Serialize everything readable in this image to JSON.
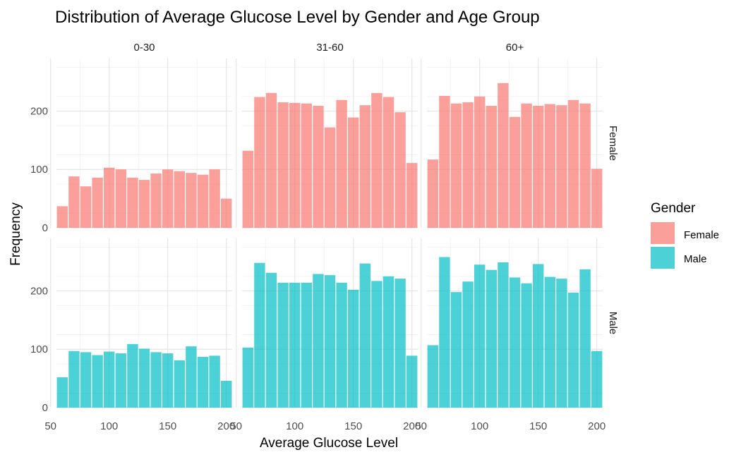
{
  "chart_data": {
    "type": "bar",
    "title": "Distribution of Average Glucose Level by Gender and Age Group",
    "xlabel": "Average Glucose Level",
    "ylabel": "Frequency",
    "xlim": [
      55,
      205
    ],
    "ylim": [
      0,
      290
    ],
    "x_ticks": [
      50,
      100,
      150,
      200
    ],
    "y_ticks": [
      0,
      100,
      200
    ],
    "columns": [
      "0-30",
      "31-60",
      "60+"
    ],
    "rows": [
      "Female",
      "Male"
    ],
    "bin_centers": [
      60,
      70,
      80,
      90,
      100,
      110,
      120,
      130,
      140,
      150,
      160,
      170,
      180,
      190,
      200
    ],
    "legend": {
      "title": "Gender",
      "placement": "right",
      "items": [
        {
          "label": "Female",
          "color": "#f8766d"
        },
        {
          "label": "Male",
          "color": "#00bfc4"
        }
      ]
    },
    "series": [
      {
        "name": "Female",
        "color": "#f8766d",
        "panels": {
          "0-30": [
            37,
            88,
            71,
            86,
            103,
            100,
            86,
            82,
            93,
            100,
            97,
            94,
            91,
            100,
            50
          ],
          "31-60": [
            132,
            224,
            231,
            215,
            214,
            213,
            209,
            172,
            219,
            189,
            210,
            231,
            224,
            198,
            111
          ],
          "60+": [
            117,
            226,
            213,
            215,
            225,
            209,
            248,
            190,
            213,
            209,
            212,
            210,
            219,
            213,
            101
          ]
        }
      },
      {
        "name": "Male",
        "color": "#00bfc4",
        "panels": {
          "0-30": [
            52,
            97,
            95,
            90,
            96,
            93,
            109,
            101,
            95,
            93,
            81,
            105,
            87,
            89,
            46
          ],
          "31-60": [
            103,
            248,
            231,
            214,
            214,
            214,
            229,
            227,
            214,
            202,
            247,
            217,
            225,
            221,
            89
          ],
          "60+": [
            107,
            258,
            198,
            216,
            245,
            236,
            249,
            223,
            213,
            246,
            224,
            221,
            197,
            237,
            97
          ]
        }
      }
    ]
  }
}
